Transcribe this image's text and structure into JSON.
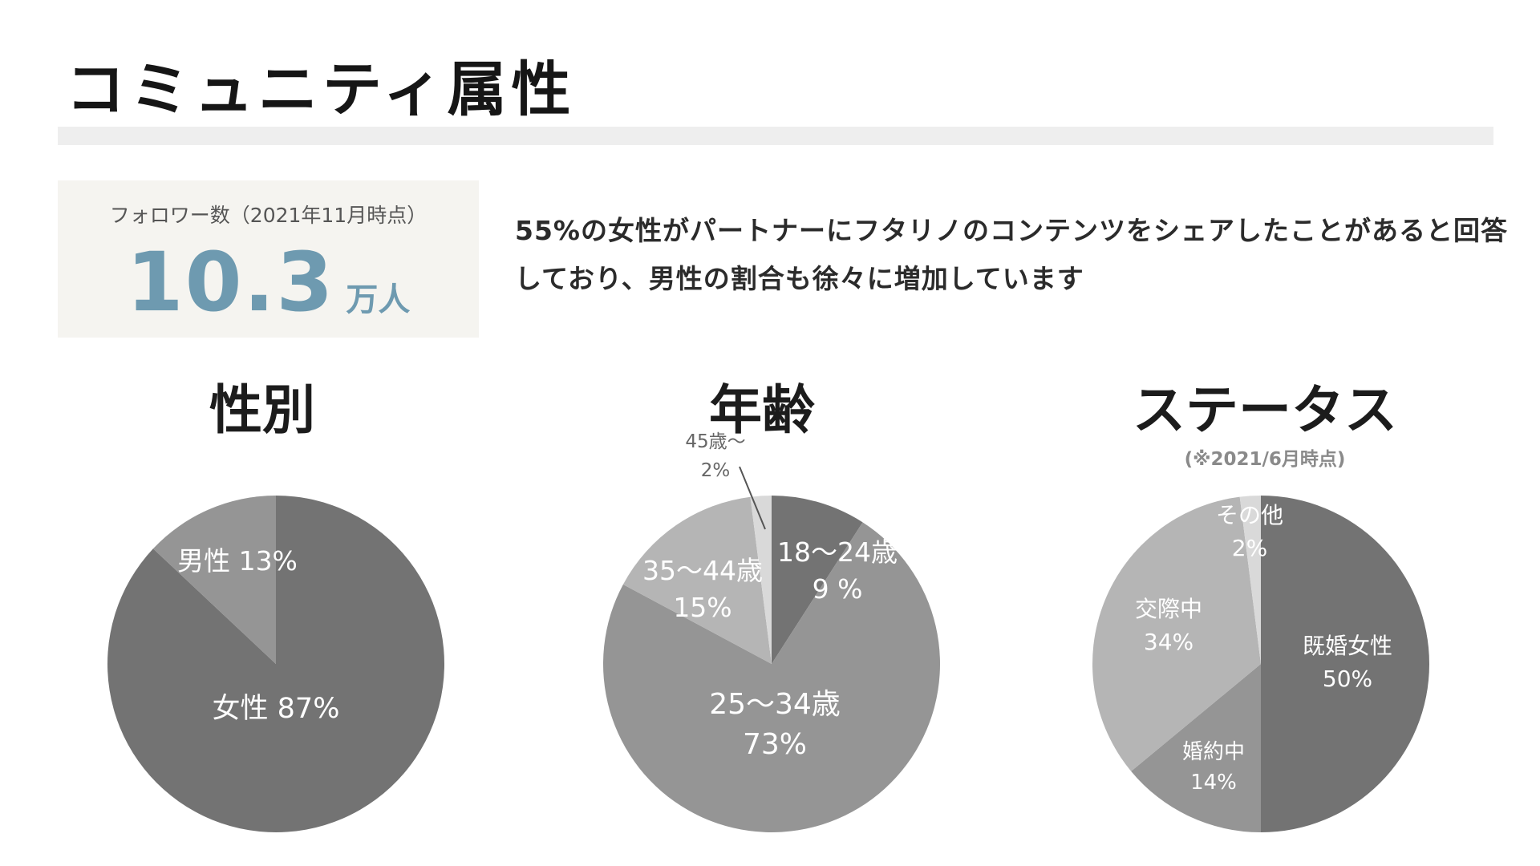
{
  "title": "コミュニティ属性",
  "followers": {
    "caption": "フォロワー数（2021年11月時点）",
    "number": "10.3",
    "unit": "万人"
  },
  "headline": "55%の女性がパートナーにフタリノのコンテンツをシェアしたことがあると回答しており、男性の割合も徐々に増加しています",
  "chart_data": [
    {
      "type": "pie",
      "title": "性別",
      "slices": [
        {
          "label": "女性",
          "value": 87,
          "display": "87%",
          "color": "#737373",
          "text_color": "#ffffff"
        },
        {
          "label": "男性",
          "value": 13,
          "display": "13%",
          "color": "#959595",
          "text_color": "#ffffff"
        }
      ]
    },
    {
      "type": "pie",
      "title": "年齢",
      "slices": [
        {
          "label": "18〜24歳",
          "value": 9,
          "display": "9 %",
          "color": "#737373",
          "text_color": "#ffffff"
        },
        {
          "label": "25〜34歳",
          "value": 73,
          "display": "73%",
          "color": "#959595",
          "text_color": "#ffffff"
        },
        {
          "label": "35〜44歳",
          "value": 15,
          "display": "15%",
          "color": "#b5b5b5",
          "text_color": "#ffffff"
        },
        {
          "label": "45歳〜",
          "value": 2,
          "display": "2%",
          "color": "#d9d9d9",
          "text_color": "#666666"
        }
      ]
    },
    {
      "type": "pie",
      "title": "ステータス",
      "note": "(※2021/6月時点)",
      "slices": [
        {
          "label": "既婚女性",
          "value": 50,
          "display": "50%",
          "color": "#737373",
          "text_color": "#ffffff"
        },
        {
          "label": "婚約中",
          "value": 14,
          "display": "14%",
          "color": "#959595",
          "text_color": "#ffffff"
        },
        {
          "label": "交際中",
          "value": 34,
          "display": "34%",
          "color": "#b5b5b5",
          "text_color": "#ffffff"
        },
        {
          "label": "その他",
          "value": 2,
          "display": "2%",
          "color": "#d9d9d9",
          "text_color": "#ffffff"
        }
      ]
    }
  ]
}
